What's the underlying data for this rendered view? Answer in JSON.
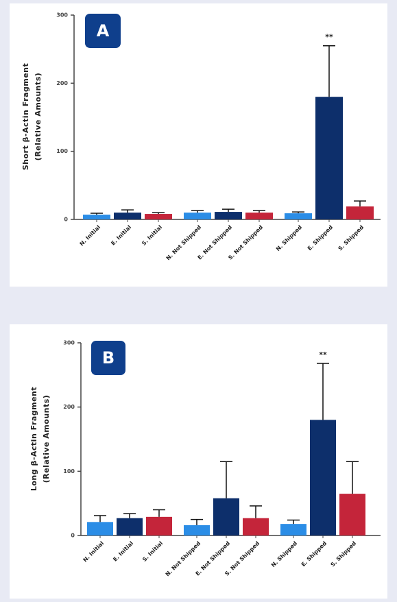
{
  "chart_data": [
    {
      "type": "bar",
      "panel_label": "A",
      "ylabel": [
        "Short β-Actin Fragment",
        "(Relative Amounts)"
      ],
      "categories": [
        "N. Initial",
        "E. Initial",
        "S. Initial",
        "N. Not Shipped",
        "E. Not Shipped",
        "S. Not Shipped",
        "N. Shipped",
        "E. Shipped",
        "S. Shipped"
      ],
      "values": [
        7,
        10,
        8,
        10,
        11,
        10,
        9,
        180,
        19
      ],
      "errors": [
        2,
        4,
        2,
        3,
        4,
        3,
        2,
        75,
        8
      ],
      "colors": [
        "#2b8de6",
        "#0d2f6b",
        "#c4253a",
        "#2b8de6",
        "#0d2f6b",
        "#c4253a",
        "#2b8de6",
        "#0d2f6b",
        "#c4253a"
      ],
      "annotations": [
        {
          "category": "E. Shipped",
          "text": "**"
        }
      ],
      "ylim": [
        0,
        300
      ],
      "yticks": [
        0,
        100,
        200,
        300
      ]
    },
    {
      "type": "bar",
      "panel_label": "B",
      "ylabel": [
        "Long β-Actin Fragment",
        "(Relative  Amounts)"
      ],
      "categories": [
        "N. Initial",
        "E. Initial",
        "S. Initial",
        "N. Not Shipped",
        "E. Not Shipped",
        "S. Not Shipped",
        "N. Shipped",
        "E. Shipped",
        "S. Shipped"
      ],
      "values": [
        21,
        27,
        29,
        16,
        58,
        27,
        18,
        180,
        65
      ],
      "errors": [
        10,
        7,
        11,
        9,
        57,
        19,
        6,
        88,
        50
      ],
      "colors": [
        "#2b8de6",
        "#0d2f6b",
        "#c4253a",
        "#2b8de6",
        "#0d2f6b",
        "#c4253a",
        "#2b8de6",
        "#0d2f6b",
        "#c4253a"
      ],
      "annotations": [
        {
          "category": "E. Shipped",
          "text": "**"
        }
      ],
      "ylim": [
        0,
        300
      ],
      "yticks": [
        0,
        100,
        200,
        300
      ]
    }
  ]
}
